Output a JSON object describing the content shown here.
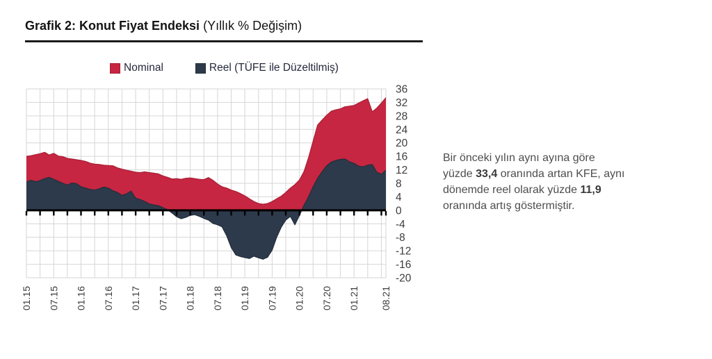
{
  "header": {
    "title_bold": "Grafik 2: Konut Fiyat Endeksi",
    "title_normal": "(Yıllık % Değişim)"
  },
  "legend": {
    "nominal": "Nominal",
    "reel": "Reel (TÜFE ile Düzeltilmiş)"
  },
  "note": {
    "lines": [
      [
        {
          "text": "Bir önceki yılın aynı ayına göre",
          "bold": false
        }
      ],
      [
        {
          "text": "yüzde ",
          "bold": false
        },
        {
          "text": "33,4",
          "bold": true
        },
        {
          "text": " oranında artan KFE, aynı",
          "bold": false
        }
      ],
      [
        {
          "text": "dönemde reel olarak yüzde ",
          "bold": false
        },
        {
          "text": "11,9",
          "bold": true
        }
      ],
      [
        {
          "text": "oranında artış göstermiştir.",
          "bold": false
        }
      ]
    ]
  },
  "colors": {
    "nominal": "#c62641",
    "nominal_stroke": "#a81f36",
    "reel": "#2d3a4b",
    "reel_stroke": "#232e3c",
    "grid": "#d6d6d6",
    "axis": "#000000"
  },
  "chart_data": {
    "type": "area",
    "title": "Konut Fiyat Endeksi (Yıllık % Değişim)",
    "ylim": [
      -20,
      36
    ],
    "y_tick_step": 4,
    "grid": true,
    "legend_position": "top",
    "x_tick_labels": [
      "01.15",
      "07.15",
      "01.16",
      "07.16",
      "01.17",
      "07.17",
      "01.18",
      "07.18",
      "01.19",
      "07.19",
      "01.20",
      "07.20",
      "01.21",
      "08.21"
    ],
    "x": [
      "01.15",
      "02.15",
      "03.15",
      "04.15",
      "05.15",
      "06.15",
      "07.15",
      "08.15",
      "09.15",
      "10.15",
      "11.15",
      "12.15",
      "01.16",
      "02.16",
      "03.16",
      "04.16",
      "05.16",
      "06.16",
      "07.16",
      "08.16",
      "09.16",
      "10.16",
      "11.16",
      "12.16",
      "01.17",
      "02.17",
      "03.17",
      "04.17",
      "05.17",
      "06.17",
      "07.17",
      "08.17",
      "09.17",
      "10.17",
      "11.17",
      "12.17",
      "01.18",
      "02.18",
      "03.18",
      "04.18",
      "05.18",
      "06.18",
      "07.18",
      "08.18",
      "09.18",
      "10.18",
      "11.18",
      "12.18",
      "01.19",
      "02.19",
      "03.19",
      "04.19",
      "05.19",
      "06.19",
      "07.19",
      "08.19",
      "09.19",
      "10.19",
      "11.19",
      "12.19",
      "01.20",
      "02.20",
      "03.20",
      "04.20",
      "05.20",
      "06.20",
      "07.20",
      "08.20",
      "09.20",
      "10.20",
      "11.20",
      "12.20",
      "01.21",
      "02.21",
      "03.21",
      "04.21",
      "05.21",
      "06.21",
      "07.21",
      "08.21"
    ],
    "series": [
      {
        "name": "Nominal",
        "color": "#c62641",
        "stroke": "#a81f36",
        "values": [
          16.0,
          16.2,
          16.5,
          16.8,
          17.2,
          16.4,
          16.9,
          16.1,
          15.9,
          15.4,
          15.2,
          15.0,
          14.8,
          14.5,
          14.0,
          13.7,
          13.6,
          13.4,
          13.3,
          13.2,
          12.6,
          12.2,
          11.9,
          11.6,
          11.3,
          11.2,
          11.4,
          11.2,
          11.0,
          10.8,
          10.2,
          9.8,
          9.3,
          9.4,
          9.2,
          9.5,
          9.6,
          9.4,
          9.2,
          9.1,
          9.7,
          8.9,
          7.8,
          7.0,
          6.6,
          6.0,
          5.6,
          5.0,
          4.3,
          3.4,
          2.6,
          2.0,
          1.8,
          2.0,
          2.6,
          3.4,
          4.2,
          5.3,
          6.6,
          7.6,
          9.0,
          11.5,
          15.6,
          20.5,
          25.3,
          26.8,
          28.2,
          29.4,
          29.8,
          30.1,
          30.7,
          30.9,
          31.1,
          31.8,
          32.5,
          33.1,
          29.2,
          30.3,
          31.8,
          33.4
        ]
      },
      {
        "name": "Reel (TÜFE ile Düzeltilmiş)",
        "color": "#2d3a4b",
        "stroke": "#232e3c",
        "values": [
          8.4,
          8.9,
          8.5,
          8.8,
          9.4,
          9.8,
          9.2,
          8.6,
          8.0,
          7.5,
          8.1,
          7.9,
          7.0,
          6.6,
          6.2,
          6.0,
          6.4,
          6.9,
          6.6,
          5.8,
          5.3,
          4.4,
          4.9,
          5.7,
          3.6,
          3.2,
          2.6,
          1.9,
          1.6,
          1.4,
          0.8,
          0.2,
          -0.8,
          -1.9,
          -2.5,
          -2.1,
          -1.5,
          -1.3,
          -1.8,
          -2.4,
          -2.9,
          -3.9,
          -4.3,
          -4.9,
          -7.5,
          -11.0,
          -13.2,
          -13.7,
          -14.0,
          -14.3,
          -13.6,
          -14.1,
          -14.5,
          -13.9,
          -11.8,
          -8.0,
          -5.0,
          -2.9,
          -1.8,
          -4.3,
          -1.5,
          1.5,
          4.0,
          7.0,
          9.5,
          11.5,
          13.2,
          14.3,
          14.8,
          15.1,
          15.2,
          14.4,
          13.9,
          13.1,
          12.9,
          13.4,
          13.6,
          11.3,
          10.7,
          11.9
        ]
      }
    ],
    "final_values": {
      "nominal": "33,4",
      "reel": "11,9"
    }
  }
}
